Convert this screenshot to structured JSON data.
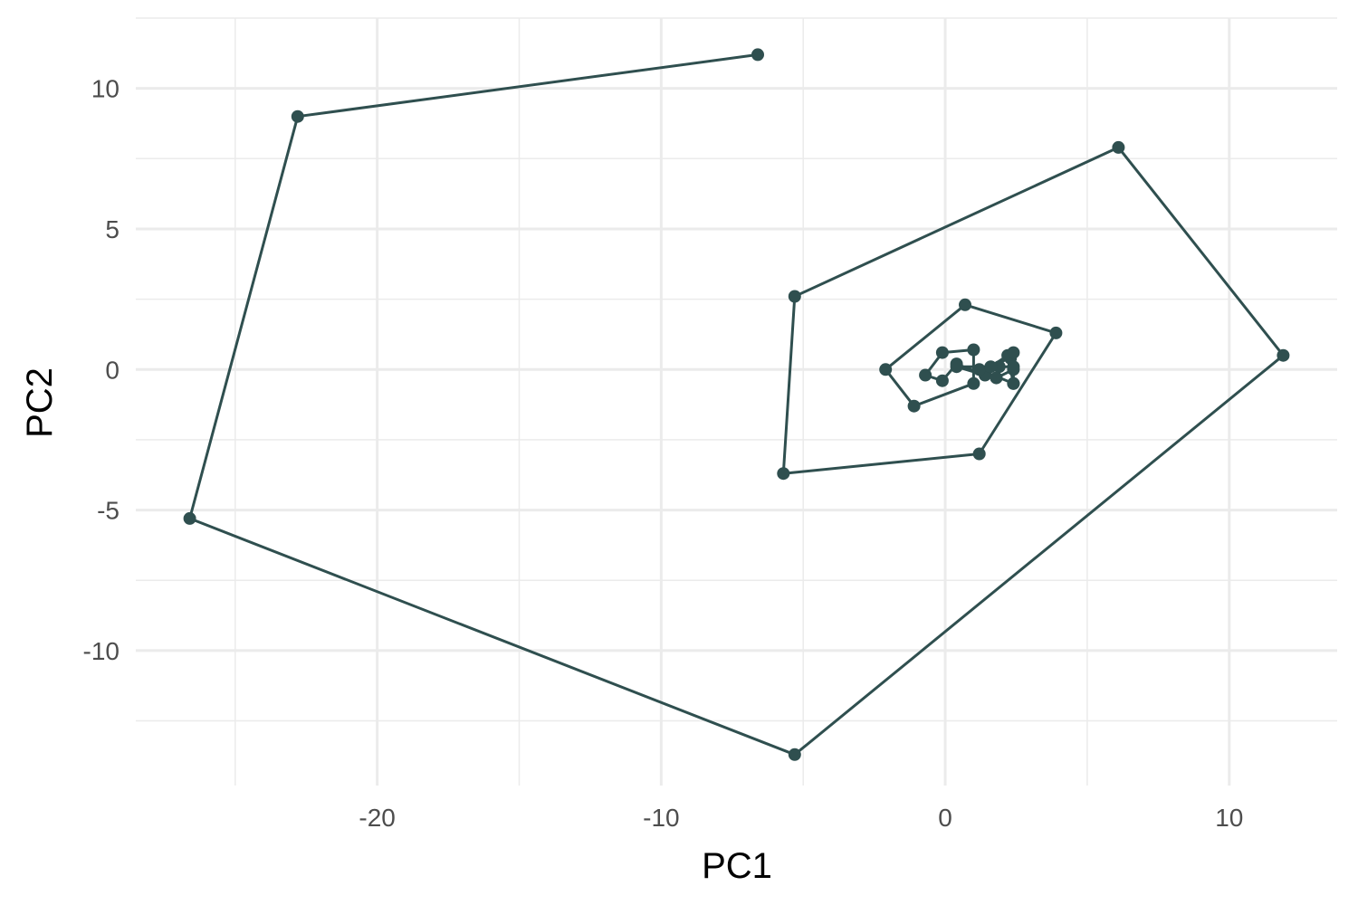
{
  "chart_data": {
    "type": "line",
    "title": "",
    "xlabel": "PC1",
    "ylabel": "PC2",
    "xlim": [
      -28.5,
      13.8
    ],
    "ylim": [
      -14.8,
      12.5
    ],
    "x_ticks": [
      -20,
      -10,
      0,
      10
    ],
    "y_ticks": [
      -10,
      -5,
      0,
      5,
      10
    ],
    "x_tick_labels": [
      "-20",
      "-10",
      "0",
      "10"
    ],
    "y_tick_labels": [
      "-10",
      "-5",
      "0",
      "5",
      "10"
    ],
    "grid": true,
    "legend": "none",
    "color": "#2f4f4f",
    "series": [
      {
        "points": [
          [
            -6.6,
            11.2
          ],
          [
            -22.8,
            9.0
          ],
          [
            -26.6,
            -5.3
          ],
          [
            -5.3,
            -13.7
          ],
          [
            11.9,
            0.5
          ],
          [
            6.1,
            7.9
          ],
          [
            -5.3,
            2.6
          ],
          [
            -5.7,
            -3.7
          ],
          [
            1.2,
            -3.0
          ],
          [
            3.9,
            1.3
          ],
          [
            0.7,
            2.3
          ],
          [
            -2.1,
            0.0
          ],
          [
            -1.1,
            -1.3
          ],
          [
            1.0,
            -0.5
          ],
          [
            1.0,
            0.7
          ],
          [
            -0.1,
            0.6
          ],
          [
            -0.7,
            -0.2
          ],
          [
            -0.1,
            -0.4
          ],
          [
            0.4,
            0.2
          ],
          [
            1.4,
            -0.2
          ],
          [
            0.4,
            0.1
          ],
          [
            1.9,
            0.1
          ],
          [
            1.8,
            -0.3
          ],
          [
            2.4,
            0.0
          ],
          [
            2.3,
            0.4
          ],
          [
            1.2,
            0.0
          ],
          [
            2.4,
            -0.5
          ],
          [
            2.2,
            0.5
          ],
          [
            1.6,
            0.1
          ],
          [
            2.4,
            0.1
          ],
          [
            2.4,
            -0.5
          ],
          [
            2.4,
            0.6
          ]
        ]
      }
    ]
  }
}
